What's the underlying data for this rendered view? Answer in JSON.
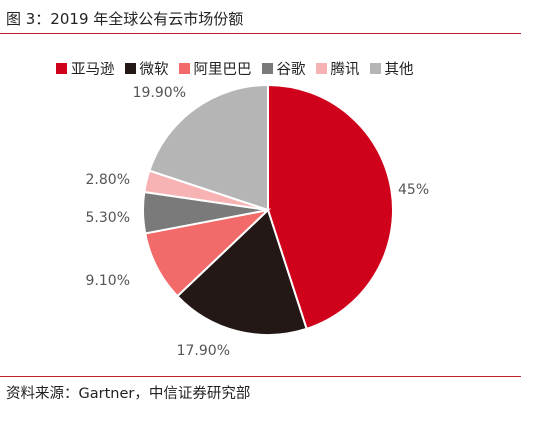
{
  "figure": {
    "title": "图 3：2019 年全球公有云市场份额",
    "source": "资料来源：Gartner，中信证券研究部"
  },
  "chart_data": {
    "type": "pie",
    "title": "",
    "legend_position": "top",
    "start": "12 o'clock, clockwise",
    "slices": [
      {
        "name": "亚马逊",
        "value": 45.0,
        "label": "45%",
        "color": "#d0011b"
      },
      {
        "name": "微软",
        "value": 17.9,
        "label": "17.90%",
        "color": "#231815"
      },
      {
        "name": "阿里巴巴",
        "value": 9.1,
        "label": "9.10%",
        "color": "#f26a6a"
      },
      {
        "name": "谷歌",
        "value": 5.3,
        "label": "5.30%",
        "color": "#7a7a7a"
      },
      {
        "name": "腾讯",
        "value": 2.8,
        "label": "2.80%",
        "color": "#f7b3b3"
      },
      {
        "name": "其他",
        "value": 19.9,
        "label": "19.90%",
        "color": "#b5b5b5"
      }
    ]
  }
}
